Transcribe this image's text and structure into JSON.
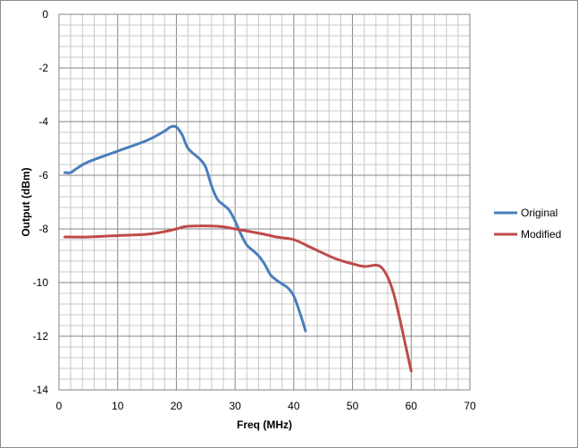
{
  "chart_data": {
    "type": "line",
    "title": "",
    "xlabel": "Freq (MHz)",
    "ylabel": "Output (dBm)",
    "xlim": [
      0,
      70
    ],
    "ylim": [
      -14,
      0
    ],
    "x_ticks": [
      "0",
      "10",
      "20",
      "30",
      "40",
      "50",
      "60",
      "70"
    ],
    "y_ticks": [
      "0",
      "-2",
      "-4",
      "-6",
      "-8",
      "-10",
      "-12",
      "-14"
    ],
    "grid": true,
    "legend_position": "right",
    "series": [
      {
        "name": "Original",
        "color": "#4a7ebb",
        "points": [
          [
            1,
            -5.9
          ],
          [
            2,
            -5.9
          ],
          [
            3,
            -5.75
          ],
          [
            5,
            -5.5
          ],
          [
            10,
            -5.1
          ],
          [
            15,
            -4.7
          ],
          [
            18,
            -4.35
          ],
          [
            19,
            -4.2
          ],
          [
            20,
            -4.2
          ],
          [
            21,
            -4.5
          ],
          [
            22,
            -5.0
          ],
          [
            24,
            -5.4
          ],
          [
            25,
            -5.7
          ],
          [
            26,
            -6.4
          ],
          [
            27,
            -6.9
          ],
          [
            28,
            -7.1
          ],
          [
            29,
            -7.3
          ],
          [
            30,
            -7.7
          ],
          [
            31,
            -8.2
          ],
          [
            32,
            -8.6
          ],
          [
            33,
            -8.8
          ],
          [
            34,
            -9.0
          ],
          [
            35,
            -9.3
          ],
          [
            36,
            -9.7
          ],
          [
            37,
            -9.9
          ],
          [
            38,
            -10.05
          ],
          [
            39,
            -10.2
          ],
          [
            40,
            -10.5
          ],
          [
            41,
            -11.1
          ],
          [
            42,
            -11.8
          ]
        ]
      },
      {
        "name": "Modified",
        "color": "#be4b48",
        "points": [
          [
            1,
            -8.3
          ],
          [
            5,
            -8.3
          ],
          [
            10,
            -8.25
          ],
          [
            15,
            -8.2
          ],
          [
            18,
            -8.1
          ],
          [
            20,
            -8.0
          ],
          [
            22,
            -7.9
          ],
          [
            27,
            -7.9
          ],
          [
            30,
            -8.0
          ],
          [
            35,
            -8.2
          ],
          [
            37,
            -8.3
          ],
          [
            40,
            -8.4
          ],
          [
            43,
            -8.7
          ],
          [
            47,
            -9.1
          ],
          [
            50,
            -9.3
          ],
          [
            52,
            -9.4
          ],
          [
            54,
            -9.35
          ],
          [
            55,
            -9.45
          ],
          [
            56,
            -9.8
          ],
          [
            57,
            -10.4
          ],
          [
            58,
            -11.3
          ],
          [
            59,
            -12.3
          ],
          [
            60,
            -13.3
          ]
        ]
      }
    ]
  }
}
